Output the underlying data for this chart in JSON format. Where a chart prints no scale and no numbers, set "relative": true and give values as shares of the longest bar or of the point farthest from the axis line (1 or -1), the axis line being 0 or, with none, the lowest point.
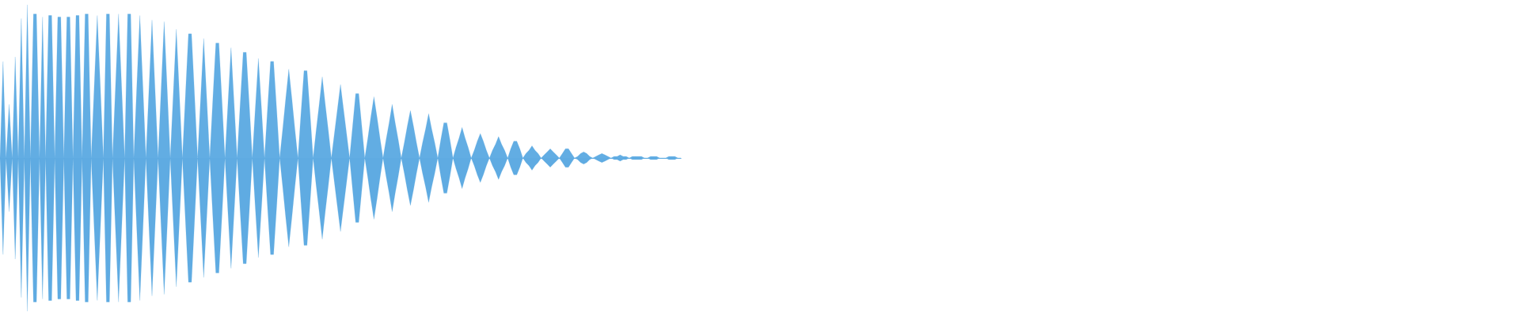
{
  "chart_data": {
    "type": "area",
    "relative": true,
    "tick_labels": false,
    "categories": [
      null,
      null,
      null,
      null,
      null,
      null,
      null,
      null,
      null,
      null,
      null,
      null,
      null,
      null,
      null,
      null,
      null,
      null,
      null,
      null,
      null,
      null,
      null,
      null,
      null,
      null,
      null,
      null,
      null,
      null,
      null,
      null,
      null,
      null,
      null,
      null,
      null,
      null,
      null,
      null,
      null,
      null,
      null,
      null,
      null,
      null,
      null,
      null,
      null,
      null,
      null,
      null,
      null,
      null,
      null,
      null,
      null,
      null,
      null,
      null,
      null,
      null,
      null,
      null,
      null,
      null,
      null,
      null,
      null,
      null,
      null,
      null,
      null,
      null,
      null,
      null,
      null,
      null,
      null,
      null,
      null,
      null,
      null,
      null,
      null,
      null,
      null,
      null,
      null,
      null,
      null,
      null,
      null,
      null,
      null,
      null,
      null,
      null,
      null,
      null,
      null,
      null,
      null,
      null,
      null,
      null,
      null,
      null,
      null,
      null,
      null,
      null,
      null,
      null,
      null,
      null,
      null,
      null,
      null,
      null,
      null,
      null,
      null,
      null,
      null,
      null,
      null,
      null,
      null,
      null,
      null,
      null,
      null,
      null,
      null,
      null,
      null,
      null,
      null,
      null,
      null,
      null,
      null,
      null,
      null,
      null,
      null,
      null,
      null,
      null,
      null,
      null,
      null,
      null,
      null,
      null,
      null,
      null,
      null,
      null,
      null,
      null,
      null,
      null,
      null,
      null,
      null,
      null,
      null,
      null,
      null,
      null,
      null,
      null,
      null,
      null,
      null,
      null,
      null,
      null,
      null,
      null,
      null,
      null,
      null,
      null,
      null,
      null,
      null,
      null,
      null,
      null,
      null,
      null,
      null,
      null,
      null,
      null,
      null,
      null,
      null,
      null,
      null,
      null,
      null,
      null,
      null,
      null,
      null,
      null,
      null,
      null,
      null,
      null,
      null,
      null,
      null,
      null,
      null,
      null,
      null,
      null,
      null,
      null,
      null
    ],
    "series": [
      {
        "color": "#62ade3",
        "values": [
          0,
          0.63,
          0,
          0.35,
          0,
          0.66,
          0,
          0.91,
          0,
          1,
          0,
          0.94,
          0.94,
          0,
          0.92,
          0,
          0.93,
          0.93,
          0,
          0.92,
          0.92,
          0,
          0.92,
          0.92,
          0,
          0.93,
          0.93,
          0,
          0.94,
          0.94,
          0,
          0.47,
          0.93,
          0.47,
          0,
          0.94,
          0.94,
          0,
          0.47,
          0.94,
          0.47,
          0,
          0.94,
          0.94,
          0,
          0.47,
          0.93,
          0.47,
          0,
          0.45,
          0.9,
          0.45,
          0,
          0.45,
          0.89,
          0.45,
          0,
          0.42,
          0.84,
          0.42,
          0,
          0.41,
          0.81,
          0.81,
          0.41,
          0,
          0.39,
          0.78,
          0.39,
          0,
          0.38,
          0.75,
          0.75,
          0.38,
          0,
          0.36,
          0.72,
          0.36,
          0,
          0.35,
          0.69,
          0.69,
          0.35,
          0,
          0.33,
          0.65,
          0.33,
          0,
          0.32,
          0.63,
          0.63,
          0.32,
          0,
          0.19,
          0.39,
          0.58,
          0.39,
          0.19,
          0,
          0.29,
          0.57,
          0.57,
          0.29,
          0,
          0.18,
          0.35,
          0.53,
          0.35,
          0.18,
          0,
          0.16,
          0.32,
          0.48,
          0.32,
          0.16,
          0,
          0.21,
          0.42,
          0.42,
          0.21,
          0,
          0.13,
          0.27,
          0.4,
          0.27,
          0.13,
          0,
          0.12,
          0.23,
          0.35,
          0.23,
          0.12,
          0,
          0.1,
          0.21,
          0.31,
          0.21,
          0.1,
          0,
          0.1,
          0.19,
          0.29,
          0.19,
          0.1,
          0,
          0.12,
          0.23,
          0.23,
          0.12,
          0,
          0.07,
          0.13,
          0.2,
          0.13,
          0.07,
          0,
          0.05,
          0.11,
          0.16,
          0.11,
          0.05,
          0,
          0.05,
          0.09,
          0.14,
          0.09,
          0.05,
          0,
          0.06,
          0.11,
          0.11,
          0.06,
          0,
          0.03,
          0.05,
          0.08,
          0.05,
          0.03,
          0,
          0.02,
          0.04,
          0.06,
          0.04,
          0.02,
          0,
          0.03,
          0.06,
          0.06,
          0.03,
          0,
          0.01,
          0.03,
          0.04,
          0.03,
          0.01,
          0,
          0.01,
          0.02,
          0.03,
          0.02,
          0.01,
          0,
          0.01,
          0.01,
          0.02,
          0.01,
          0.01,
          0,
          0.01,
          0.01,
          0.01,
          0.01,
          0,
          0,
          0.01,
          0.01,
          0.01,
          0,
          0,
          0,
          0.01,
          0.01,
          0.01,
          0,
          0
        ]
      },
      {
        "color": "#5fabe2",
        "values": [
          0,
          -0.63,
          0,
          -0.35,
          0,
          -0.66,
          0,
          -0.91,
          0,
          -1,
          0,
          -0.94,
          -0.94,
          0,
          -0.92,
          0,
          -0.93,
          -0.93,
          0,
          -0.92,
          -0.92,
          0,
          -0.92,
          -0.92,
          0,
          -0.93,
          -0.93,
          0,
          -0.94,
          -0.94,
          0,
          -0.47,
          -0.93,
          -0.47,
          0,
          -0.94,
          -0.94,
          0,
          -0.47,
          -0.94,
          -0.47,
          0,
          -0.94,
          -0.94,
          0,
          -0.47,
          -0.93,
          -0.47,
          0,
          -0.45,
          -0.9,
          -0.45,
          0,
          -0.45,
          -0.89,
          -0.45,
          0,
          -0.42,
          -0.84,
          -0.42,
          0,
          -0.41,
          -0.81,
          -0.81,
          -0.41,
          0,
          -0.39,
          -0.78,
          -0.39,
          0,
          -0.38,
          -0.75,
          -0.75,
          -0.38,
          0,
          -0.36,
          -0.72,
          -0.36,
          0,
          -0.35,
          -0.69,
          -0.69,
          -0.35,
          0,
          -0.33,
          -0.65,
          -0.33,
          0,
          -0.32,
          -0.63,
          -0.63,
          -0.32,
          0,
          -0.19,
          -0.39,
          -0.58,
          -0.39,
          -0.19,
          0,
          -0.29,
          -0.57,
          -0.57,
          -0.29,
          0,
          -0.18,
          -0.35,
          -0.53,
          -0.35,
          -0.18,
          0,
          -0.16,
          -0.32,
          -0.48,
          -0.32,
          -0.16,
          0,
          -0.21,
          -0.42,
          -0.42,
          -0.21,
          0,
          -0.13,
          -0.27,
          -0.4,
          -0.27,
          -0.13,
          0,
          -0.12,
          -0.23,
          -0.35,
          -0.23,
          -0.12,
          0,
          -0.1,
          -0.21,
          -0.31,
          -0.21,
          -0.1,
          0,
          -0.1,
          -0.19,
          -0.29,
          -0.19,
          -0.1,
          0,
          -0.12,
          -0.23,
          -0.23,
          -0.12,
          0,
          -0.07,
          -0.13,
          -0.2,
          -0.13,
          -0.07,
          0,
          -0.05,
          -0.11,
          -0.16,
          -0.11,
          -0.05,
          0,
          -0.05,
          -0.09,
          -0.14,
          -0.09,
          -0.05,
          0,
          -0.06,
          -0.11,
          -0.11,
          -0.06,
          0,
          -0.03,
          -0.05,
          -0.08,
          -0.05,
          -0.03,
          0,
          -0.02,
          -0.04,
          -0.06,
          -0.04,
          -0.02,
          0,
          -0.03,
          -0.06,
          -0.06,
          -0.03,
          0,
          -0.01,
          -0.03,
          -0.04,
          -0.03,
          -0.01,
          0,
          -0.01,
          -0.02,
          -0.03,
          -0.02,
          -0.01,
          0,
          -0.01,
          -0.01,
          -0.02,
          -0.01,
          -0.01,
          0,
          -0.01,
          -0.01,
          -0.01,
          -0.01,
          0,
          0,
          -0.01,
          -0.01,
          -0.01,
          0,
          0,
          0,
          -0.01,
          -0.01,
          -0.01,
          0,
          0
        ]
      }
    ]
  }
}
